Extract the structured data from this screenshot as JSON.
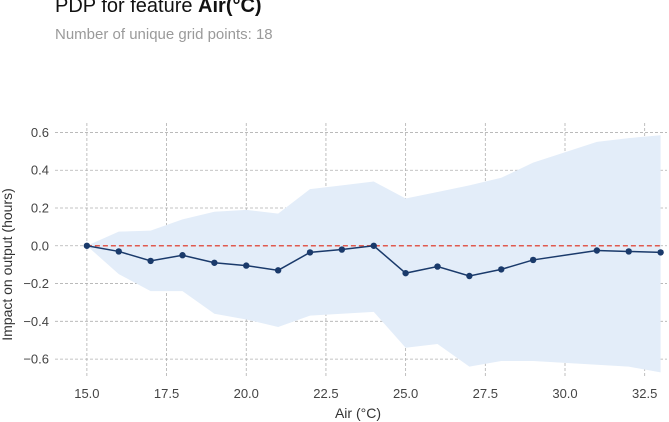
{
  "header": {
    "title_prefix": "PDP for feature",
    "title_feature": "Air(°C)",
    "subtitle": "Number of unique grid points: 18"
  },
  "chart_data": {
    "type": "line",
    "xlabel": "Air (°C)",
    "ylabel": "Impact on output (hours)",
    "xlim": [
      14.0,
      33.2
    ],
    "ylim": [
      -0.7,
      0.65
    ],
    "xticks": [
      "15.0",
      "17.5",
      "20.0",
      "22.5",
      "25.0",
      "27.5",
      "30.0",
      "32.5"
    ],
    "xtick_values": [
      15.0,
      17.5,
      20.0,
      22.5,
      25.0,
      27.5,
      30.0,
      32.5
    ],
    "yticks": [
      "−0.6",
      "−0.4",
      "−0.2",
      "0.0",
      "0.2",
      "0.4",
      "0.6"
    ],
    "ytick_values": [
      -0.6,
      -0.4,
      -0.2,
      0.0,
      0.2,
      0.4,
      0.6
    ],
    "grid": true,
    "reference_line": {
      "y": 0.0,
      "color": "#e05a4f",
      "style": "dashed"
    },
    "series": [
      {
        "x": [
          15,
          16,
          17,
          18,
          19,
          20,
          21,
          22,
          23,
          24,
          25,
          26,
          27,
          28,
          29,
          31,
          32,
          33
        ],
        "values": [
          0.0,
          -0.03,
          -0.08,
          -0.05,
          -0.09,
          -0.105,
          -0.13,
          -0.035,
          -0.02,
          0.0,
          -0.145,
          -0.11,
          -0.16,
          -0.125,
          -0.075,
          -0.025,
          -0.03,
          -0.035
        ],
        "upper": [
          0.0,
          0.075,
          0.08,
          0.14,
          0.18,
          0.19,
          0.17,
          0.3,
          0.32,
          0.34,
          0.25,
          0.285,
          0.32,
          0.36,
          0.44,
          0.55,
          0.57,
          0.585
        ],
        "lower": [
          0.0,
          -0.15,
          -0.24,
          -0.24,
          -0.36,
          -0.39,
          -0.43,
          -0.37,
          -0.36,
          -0.35,
          -0.54,
          -0.52,
          -0.64,
          -0.61,
          -0.61,
          -0.63,
          -0.64,
          -0.67
        ]
      }
    ],
    "colors": {
      "line": "#1a3a6b",
      "band": "#e3edf9",
      "grid": "#b0b0b0"
    }
  }
}
